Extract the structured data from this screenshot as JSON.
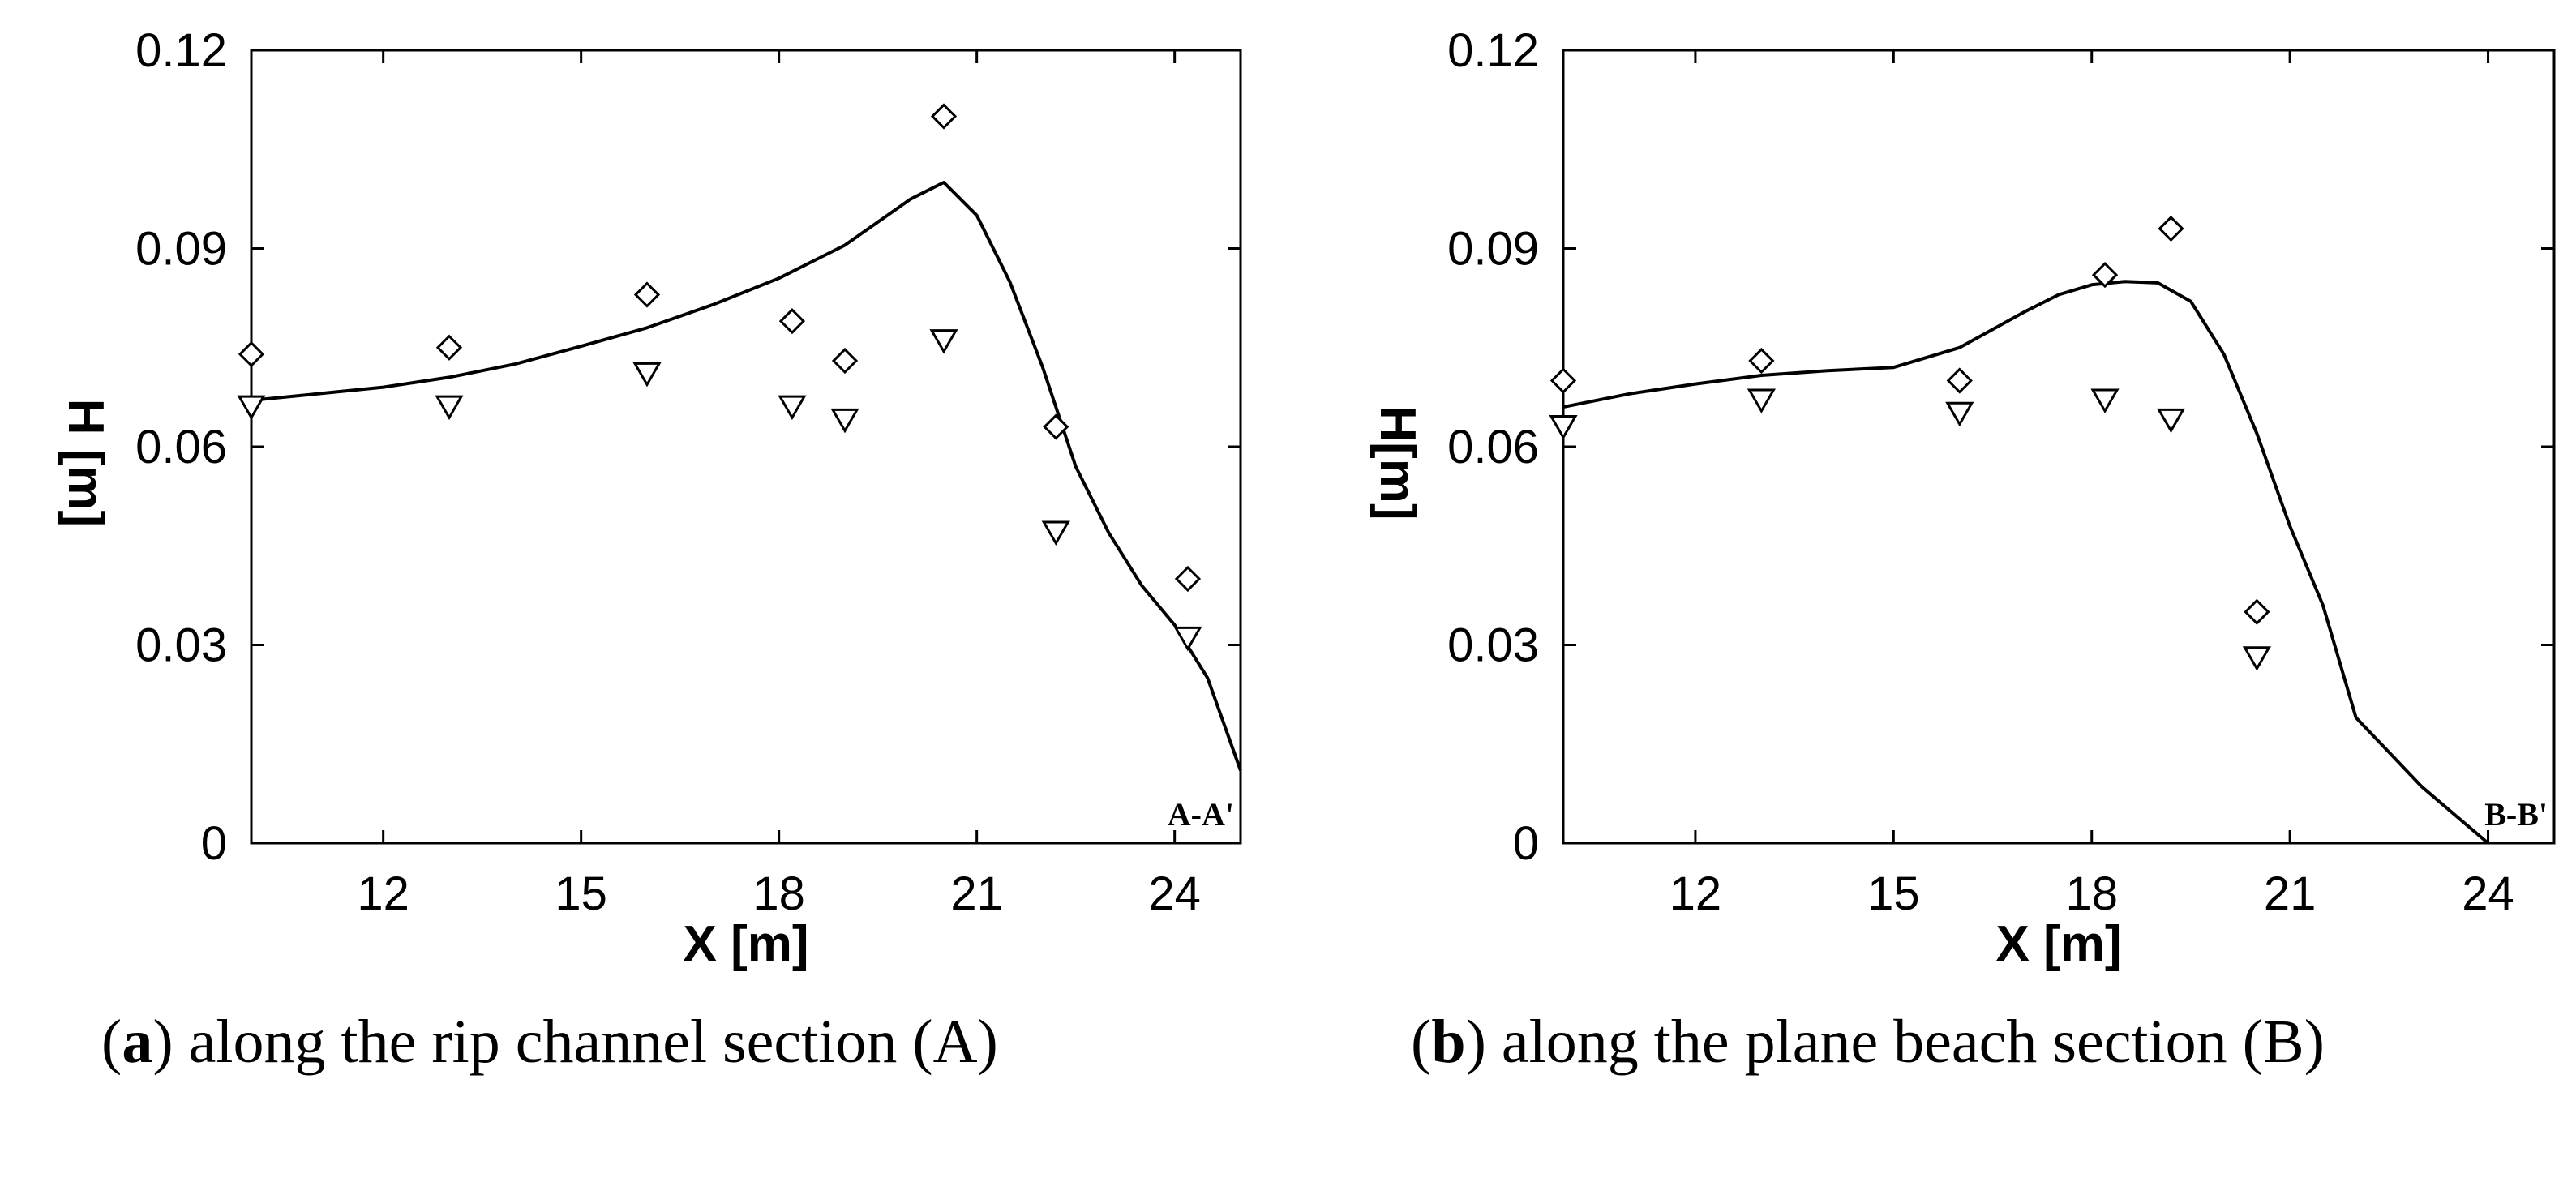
{
  "chart_data": [
    {
      "type": "line",
      "panel_label": "a",
      "caption_text": " along the rip channel section (A)",
      "caption_open": "(",
      "caption_close": ")",
      "section_tag": "A-A'",
      "xlabel": "X [m]",
      "ylabel": "H [m]",
      "xlim": [
        10,
        25
      ],
      "ylim": [
        0,
        0.12
      ],
      "xticks": [
        12,
        15,
        18,
        21,
        24
      ],
      "yticks": [
        0,
        0.03,
        0.06,
        0.09,
        0.12
      ],
      "ytick_labels": [
        "0",
        "0.03",
        "0.06",
        "0.09",
        "0.12"
      ],
      "grid": false,
      "series": [
        {
          "kind": "line",
          "x": [
            10,
            11,
            12,
            13,
            14,
            15,
            16,
            17,
            18,
            19,
            20,
            20.5,
            21,
            21.5,
            22,
            22.5,
            23,
            23.5,
            24,
            24.5,
            25
          ],
          "y": [
            0.067,
            0.068,
            0.069,
            0.0705,
            0.0725,
            0.0752,
            0.078,
            0.0815,
            0.0855,
            0.0905,
            0.0975,
            0.1,
            0.095,
            0.085,
            0.072,
            0.057,
            0.047,
            0.039,
            0.033,
            0.025,
            0.011
          ]
        },
        {
          "kind": "diamond",
          "x": [
            10.0,
            13.0,
            16.0,
            18.2,
            19.0,
            20.5,
            22.2,
            24.2
          ],
          "y": [
            0.074,
            0.075,
            0.083,
            0.079,
            0.073,
            0.11,
            0.063,
            0.04
          ]
        },
        {
          "kind": "triangle-down",
          "x": [
            10.0,
            13.0,
            16.0,
            18.2,
            19.0,
            20.5,
            22.2,
            24.2
          ],
          "y": [
            0.066,
            0.066,
            0.071,
            0.066,
            0.064,
            0.076,
            0.047,
            0.031
          ]
        }
      ]
    },
    {
      "type": "line",
      "panel_label": "b",
      "caption_text": " along the plane beach section (B)",
      "caption_open": "(",
      "caption_close": ")",
      "section_tag": "B-B'",
      "xlabel": "X [m]",
      "ylabel": "H[m]",
      "xlim": [
        10,
        25
      ],
      "ylim": [
        0,
        0.12
      ],
      "xticks": [
        12,
        15,
        18,
        21,
        24
      ],
      "yticks": [
        0,
        0.03,
        0.06,
        0.09,
        0.12
      ],
      "ytick_labels": [
        "0",
        "0.03",
        "0.06",
        "0.09",
        "0.12"
      ],
      "grid": false,
      "series": [
        {
          "kind": "line",
          "x": [
            10,
            11,
            12,
            13,
            14,
            15,
            16,
            17,
            17.5,
            18,
            18.5,
            19,
            19.5,
            20,
            20.5,
            21,
            21.5,
            22,
            23,
            24
          ],
          "y": [
            0.066,
            0.068,
            0.0695,
            0.0708,
            0.0715,
            0.072,
            0.075,
            0.0805,
            0.083,
            0.0845,
            0.085,
            0.0848,
            0.082,
            0.074,
            0.062,
            0.048,
            0.036,
            0.019,
            0.0085,
            0.0
          ]
        },
        {
          "kind": "diamond",
          "x": [
            10.0,
            13.0,
            16.0,
            18.2,
            19.2,
            20.5
          ],
          "y": [
            0.07,
            0.073,
            0.07,
            0.086,
            0.093,
            0.035
          ]
        },
        {
          "kind": "triangle-down",
          "x": [
            10.0,
            13.0,
            16.0,
            18.2,
            19.2,
            20.5
          ],
          "y": [
            0.063,
            0.067,
            0.065,
            0.067,
            0.064,
            0.028
          ]
        }
      ]
    }
  ]
}
